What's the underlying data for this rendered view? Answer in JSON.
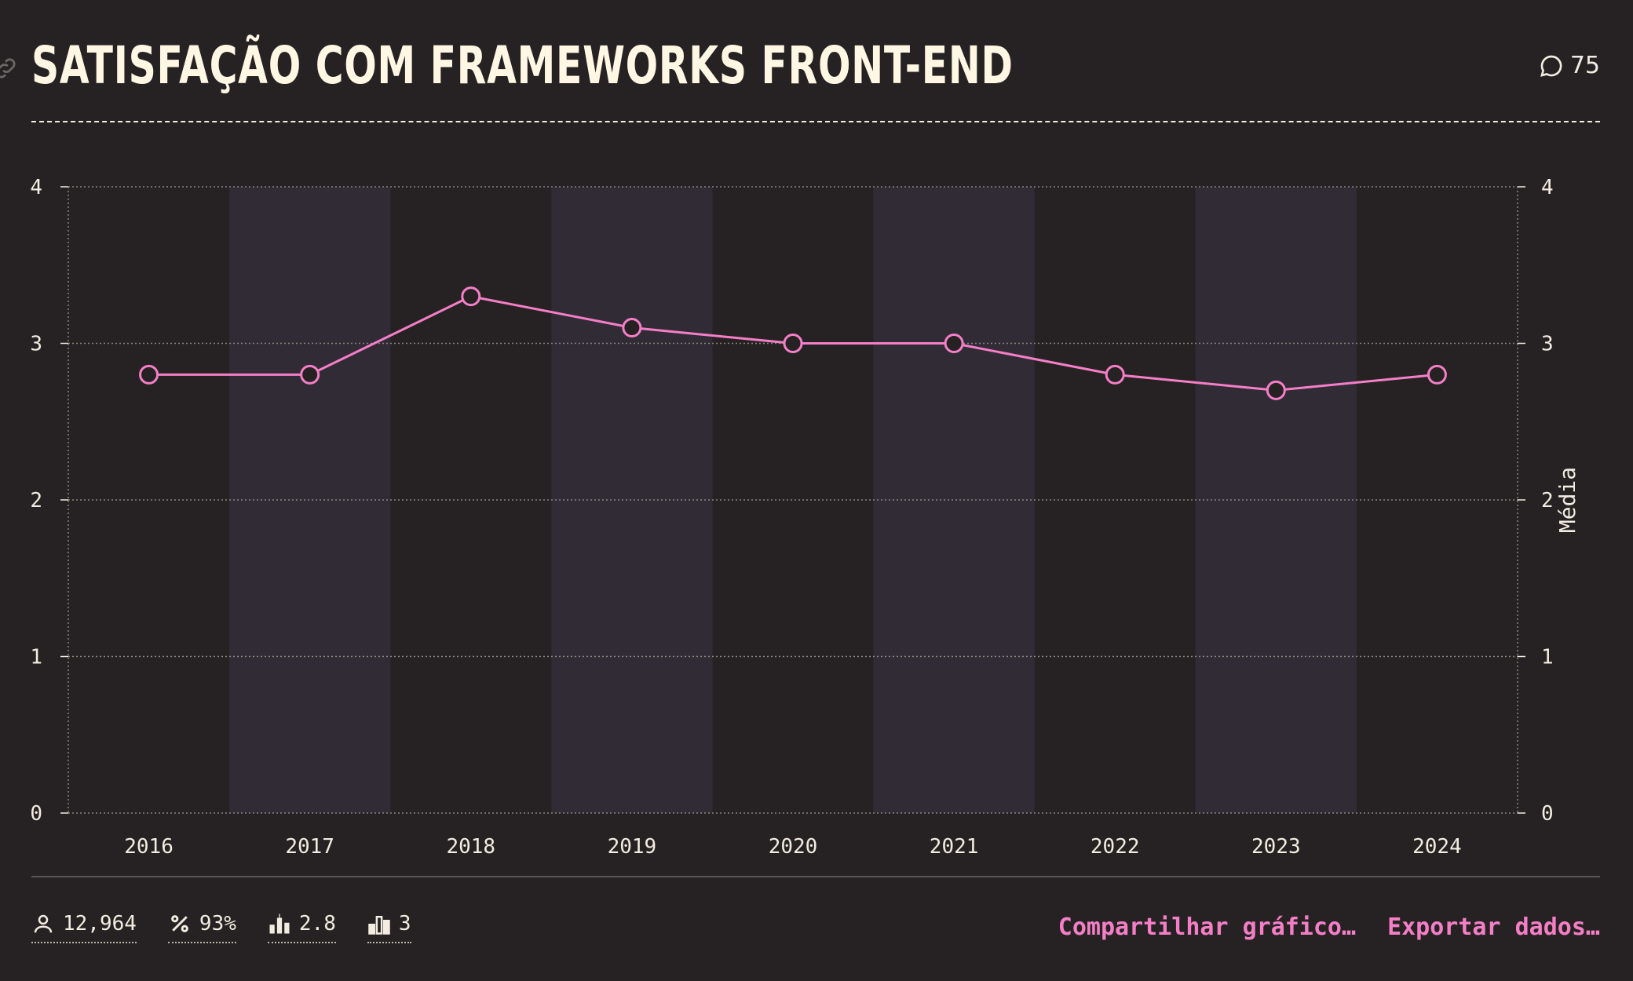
{
  "header": {
    "title": "SATISFAÇÃO COM FRAMEWORKS FRONT-END",
    "comments_count": "75"
  },
  "chart_data": {
    "type": "line",
    "title": "SATISFAÇÃO COM FRAMEWORKS FRONT-END",
    "xlabel": "",
    "ylabel": "Média",
    "ylim": [
      0,
      4
    ],
    "yticks": [
      "0",
      "1",
      "2",
      "3",
      "4"
    ],
    "categories": [
      "2016",
      "2017",
      "2018",
      "2019",
      "2020",
      "2021",
      "2022",
      "2023",
      "2024"
    ],
    "series": [
      {
        "name": "Média",
        "values": [
          2.8,
          2.8,
          3.3,
          3.1,
          3.0,
          3.0,
          2.8,
          2.7,
          2.8
        ]
      }
    ],
    "grid": true,
    "colors": {
      "line": "#f47fc7",
      "band": "#312b36",
      "grid": "#8a8582",
      "text": "#f3ece0"
    }
  },
  "stats": {
    "respondents": "12,964",
    "percentage": "93%",
    "average": "2.8",
    "median": "3"
  },
  "actions": {
    "share": "Compartilhar gráfico…",
    "export": "Exportar dados…"
  }
}
